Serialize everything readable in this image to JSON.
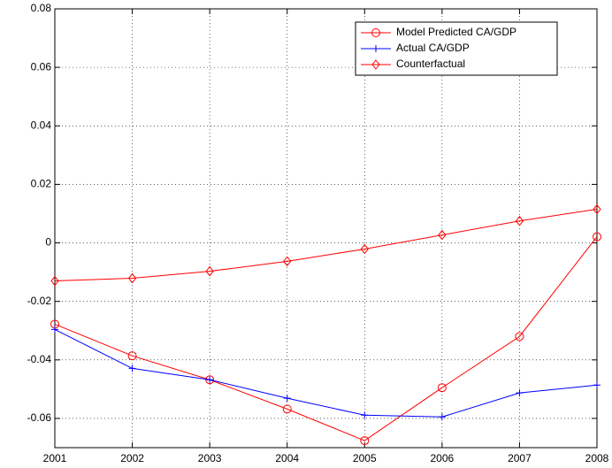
{
  "chart_data": {
    "type": "line",
    "x": [
      2001,
      2002,
      2003,
      2004,
      2005,
      2006,
      2007,
      2008
    ],
    "series": [
      {
        "name": "Model Predicted CA/GDP",
        "color": "#ff0000",
        "marker": "circle",
        "values": [
          -0.0278,
          -0.0386,
          -0.0468,
          -0.0568,
          -0.0676,
          -0.0495,
          -0.032,
          0.0021
        ]
      },
      {
        "name": "Actual CA/GDP",
        "color": "#0000ff",
        "marker": "plus",
        "values": [
          -0.0296,
          -0.0429,
          -0.0468,
          -0.0531,
          -0.0589,
          -0.0595,
          -0.0513,
          -0.0486
        ]
      },
      {
        "name": "Counterfactual",
        "color": "#ff0000",
        "marker": "diamond",
        "values": [
          -0.013,
          -0.0121,
          -0.0097,
          -0.0063,
          -0.0021,
          0.0027,
          0.0075,
          0.0115
        ]
      }
    ],
    "xlim": [
      2001,
      2008
    ],
    "xticks": [
      2001,
      2002,
      2003,
      2004,
      2005,
      2006,
      2007,
      2008
    ],
    "ylim": [
      -0.07,
      0.08
    ],
    "yticks": [
      -0.06,
      -0.04,
      -0.02,
      0,
      0.02,
      0.04,
      0.06,
      0.08
    ],
    "grid": true,
    "legend": "upper right"
  }
}
